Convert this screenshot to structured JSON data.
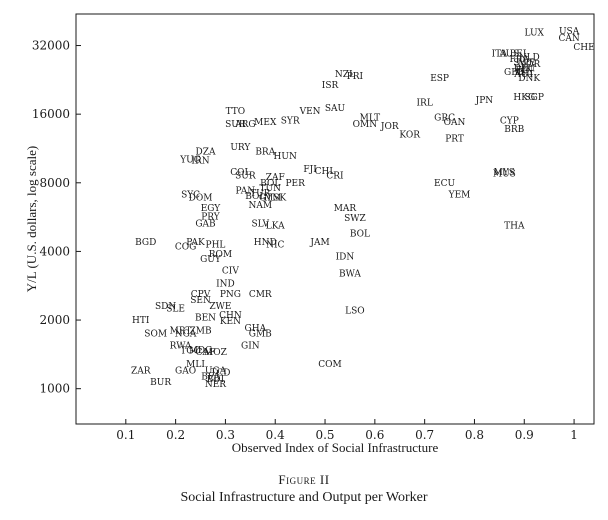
{
  "figure_label": "Figure II",
  "figure_title": "Social Infrastructure and Output per Worker",
  "chart_data": {
    "type": "scatter",
    "title": "",
    "xlabel": "Observed Index of Social Infrastructure",
    "ylabel": "Y/L (U.S. dollars, log scale)",
    "xlim": [
      0.0,
      1.04
    ],
    "ylim": [
      700,
      44000
    ],
    "y_scale": "log",
    "xticks": [
      0.1,
      0.2,
      0.3,
      0.4,
      0.5,
      0.6,
      0.7,
      0.8,
      0.9,
      1
    ],
    "xtick_labels": [
      "0.1",
      "0.2",
      "0.3",
      "0.4",
      "0.5",
      "0.6",
      "0.7",
      "0.8",
      "0.9",
      "1"
    ],
    "yticks": [
      1000,
      2000,
      4000,
      8000,
      16000,
      32000
    ],
    "ytick_labels": [
      "1000",
      "2000",
      "4000",
      "8000",
      "16000",
      "32000"
    ],
    "grid": false,
    "marker": "country-code text",
    "points": [
      {
        "label": "LUX",
        "x": 0.92,
        "y": 36500
      },
      {
        "label": "USA",
        "x": 0.99,
        "y": 37000
      },
      {
        "label": "CAN",
        "x": 0.99,
        "y": 34500
      },
      {
        "label": "CHE",
        "x": 1.02,
        "y": 31500
      },
      {
        "label": "ITA",
        "x": 0.85,
        "y": 29500
      },
      {
        "label": "AUS",
        "x": 0.87,
        "y": 29500
      },
      {
        "label": "BEL",
        "x": 0.89,
        "y": 29500
      },
      {
        "label": "FRA",
        "x": 0.89,
        "y": 28000
      },
      {
        "label": "NLD",
        "x": 0.91,
        "y": 28500
      },
      {
        "label": "SWE",
        "x": 0.9,
        "y": 27000
      },
      {
        "label": "NOR",
        "x": 0.91,
        "y": 26500
      },
      {
        "label": "DEU",
        "x": 0.9,
        "y": 25500
      },
      {
        "label": "FIN",
        "x": 0.9,
        "y": 25000
      },
      {
        "label": "GBR",
        "x": 0.88,
        "y": 24500
      },
      {
        "label": "AUT",
        "x": 0.9,
        "y": 24000
      },
      {
        "label": "NZL",
        "x": 0.54,
        "y": 24000
      },
      {
        "label": "DNK",
        "x": 0.91,
        "y": 23000
      },
      {
        "label": "ISL",
        "x": 0.9,
        "y": 24500
      },
      {
        "label": "ESP",
        "x": 0.73,
        "y": 23000
      },
      {
        "label": "PRI",
        "x": 0.56,
        "y": 23500
      },
      {
        "label": "ISR",
        "x": 0.51,
        "y": 21500
      },
      {
        "label": "HKG",
        "x": 0.9,
        "y": 19000
      },
      {
        "label": "SGP",
        "x": 0.92,
        "y": 19000
      },
      {
        "label": "JPN",
        "x": 0.82,
        "y": 18500
      },
      {
        "label": "IRL",
        "x": 0.7,
        "y": 18000
      },
      {
        "label": "SAU",
        "x": 0.52,
        "y": 17000
      },
      {
        "label": "VEN",
        "x": 0.47,
        "y": 16500
      },
      {
        "label": "TTO",
        "x": 0.32,
        "y": 16500
      },
      {
        "label": "MLT",
        "x": 0.59,
        "y": 15500
      },
      {
        "label": "GRC",
        "x": 0.74,
        "y": 15500
      },
      {
        "label": "CYP",
        "x": 0.87,
        "y": 15000
      },
      {
        "label": "OAN",
        "x": 0.76,
        "y": 14800
      },
      {
        "label": "MEX",
        "x": 0.38,
        "y": 14800
      },
      {
        "label": "SYR",
        "x": 0.43,
        "y": 15000
      },
      {
        "label": "SUR",
        "x": 0.32,
        "y": 14500
      },
      {
        "label": "ARG",
        "x": 0.34,
        "y": 14500
      },
      {
        "label": "OMN",
        "x": 0.58,
        "y": 14500
      },
      {
        "label": "JOR",
        "x": 0.63,
        "y": 14200
      },
      {
        "label": "BRB",
        "x": 0.88,
        "y": 13800
      },
      {
        "label": "KOR",
        "x": 0.67,
        "y": 13000
      },
      {
        "label": "PRT",
        "x": 0.76,
        "y": 12500
      },
      {
        "label": "URY",
        "x": 0.33,
        "y": 11500
      },
      {
        "label": "BRA",
        "x": 0.38,
        "y": 11000
      },
      {
        "label": "DZA",
        "x": 0.26,
        "y": 11000
      },
      {
        "label": "HUN",
        "x": 0.42,
        "y": 10500
      },
      {
        "label": "YUG",
        "x": 0.23,
        "y": 10100
      },
      {
        "label": "IRN",
        "x": 0.25,
        "y": 10000
      },
      {
        "label": "FJI",
        "x": 0.47,
        "y": 9200
      },
      {
        "label": "CHL",
        "x": 0.5,
        "y": 9000
      },
      {
        "label": "CRI",
        "x": 0.52,
        "y": 8600
      },
      {
        "label": "MYS",
        "x": 0.86,
        "y": 8900
      },
      {
        "label": "MUS",
        "x": 0.86,
        "y": 8800
      },
      {
        "label": "COL",
        "x": 0.33,
        "y": 8900
      },
      {
        "label": "SUR",
        "x": 0.34,
        "y": 8600
      },
      {
        "label": "ZAF",
        "x": 0.4,
        "y": 8500
      },
      {
        "label": "ECU",
        "x": 0.74,
        "y": 8000
      },
      {
        "label": "PER",
        "x": 0.44,
        "y": 8000
      },
      {
        "label": "BOL",
        "x": 0.39,
        "y": 8000
      },
      {
        "label": "TUN",
        "x": 0.39,
        "y": 7600
      },
      {
        "label": "PAN",
        "x": 0.34,
        "y": 7400
      },
      {
        "label": "TUR",
        "x": 0.37,
        "y": 7200
      },
      {
        "label": "BOL",
        "x": 0.36,
        "y": 7000
      },
      {
        "label": "GTM",
        "x": 0.39,
        "y": 6900
      },
      {
        "label": "MSK",
        "x": 0.4,
        "y": 6900
      },
      {
        "label": "SYC",
        "x": 0.23,
        "y": 7100
      },
      {
        "label": "YEM",
        "x": 0.77,
        "y": 7100
      },
      {
        "label": "DOM",
        "x": 0.25,
        "y": 6900
      },
      {
        "label": "NAM",
        "x": 0.37,
        "y": 6400
      },
      {
        "label": "EGY",
        "x": 0.27,
        "y": 6200
      },
      {
        "label": "MAR",
        "x": 0.54,
        "y": 6200
      },
      {
        "label": "PRY",
        "x": 0.27,
        "y": 5700
      },
      {
        "label": "SWZ",
        "x": 0.56,
        "y": 5600
      },
      {
        "label": "GAB",
        "x": 0.26,
        "y": 5300
      },
      {
        "label": "SLV",
        "x": 0.37,
        "y": 5300
      },
      {
        "label": "LKA",
        "x": 0.4,
        "y": 5200
      },
      {
        "label": "THA",
        "x": 0.88,
        "y": 5200
      },
      {
        "label": "BOL",
        "x": 0.57,
        "y": 4800
      },
      {
        "label": "BGD",
        "x": 0.14,
        "y": 4400
      },
      {
        "label": "PAK",
        "x": 0.24,
        "y": 4400
      },
      {
        "label": "COG",
        "x": 0.22,
        "y": 4200
      },
      {
        "label": "PHL",
        "x": 0.28,
        "y": 4300
      },
      {
        "label": "HND",
        "x": 0.38,
        "y": 4400
      },
      {
        "label": "NIC",
        "x": 0.4,
        "y": 4300
      },
      {
        "label": "JAM",
        "x": 0.49,
        "y": 4400
      },
      {
        "label": "ROM",
        "x": 0.29,
        "y": 3900
      },
      {
        "label": "IDN",
        "x": 0.54,
        "y": 3800
      },
      {
        "label": "GUY",
        "x": 0.27,
        "y": 3700
      },
      {
        "label": "CIV",
        "x": 0.31,
        "y": 3300
      },
      {
        "label": "BWA",
        "x": 0.55,
        "y": 3200
      },
      {
        "label": "IND",
        "x": 0.3,
        "y": 2900
      },
      {
        "label": "PNG",
        "x": 0.31,
        "y": 2600
      },
      {
        "label": "CMR",
        "x": 0.37,
        "y": 2600
      },
      {
        "label": "CPV",
        "x": 0.25,
        "y": 2600
      },
      {
        "label": "SEN",
        "x": 0.25,
        "y": 2450
      },
      {
        "label": "ZWE",
        "x": 0.29,
        "y": 2300
      },
      {
        "label": "SDN",
        "x": 0.18,
        "y": 2300
      },
      {
        "label": "SLE",
        "x": 0.2,
        "y": 2250
      },
      {
        "label": "LSO",
        "x": 0.56,
        "y": 2200
      },
      {
        "label": "BEN",
        "x": 0.26,
        "y": 2050
      },
      {
        "label": "CHN",
        "x": 0.31,
        "y": 2100
      },
      {
        "label": "KEN",
        "x": 0.31,
        "y": 1980
      },
      {
        "label": "HTI",
        "x": 0.13,
        "y": 2000
      },
      {
        "label": "GHA",
        "x": 0.36,
        "y": 1850
      },
      {
        "label": "MRT",
        "x": 0.21,
        "y": 1800
      },
      {
        "label": "ZMB",
        "x": 0.25,
        "y": 1800
      },
      {
        "label": "SOM",
        "x": 0.16,
        "y": 1750
      },
      {
        "label": "NGA",
        "x": 0.22,
        "y": 1750
      },
      {
        "label": "GMB",
        "x": 0.37,
        "y": 1750
      },
      {
        "label": "RWA",
        "x": 0.21,
        "y": 1550
      },
      {
        "label": "GIN",
        "x": 0.35,
        "y": 1550
      },
      {
        "label": "TGO",
        "x": 0.23,
        "y": 1470
      },
      {
        "label": "MDG",
        "x": 0.25,
        "y": 1480
      },
      {
        "label": "CAF",
        "x": 0.26,
        "y": 1450
      },
      {
        "label": "MOZ",
        "x": 0.28,
        "y": 1450
      },
      {
        "label": "MLI",
        "x": 0.24,
        "y": 1280
      },
      {
        "label": "COM",
        "x": 0.51,
        "y": 1280
      },
      {
        "label": "ZAR",
        "x": 0.13,
        "y": 1200
      },
      {
        "label": "GAO",
        "x": 0.22,
        "y": 1200
      },
      {
        "label": "UGA",
        "x": 0.28,
        "y": 1200
      },
      {
        "label": "TCD",
        "x": 0.29,
        "y": 1180
      },
      {
        "label": "BFA",
        "x": 0.27,
        "y": 1130
      },
      {
        "label": "BDI",
        "x": 0.28,
        "y": 1100
      },
      {
        "label": "BUR",
        "x": 0.17,
        "y": 1070
      },
      {
        "label": "NER",
        "x": 0.28,
        "y": 1050
      }
    ]
  }
}
